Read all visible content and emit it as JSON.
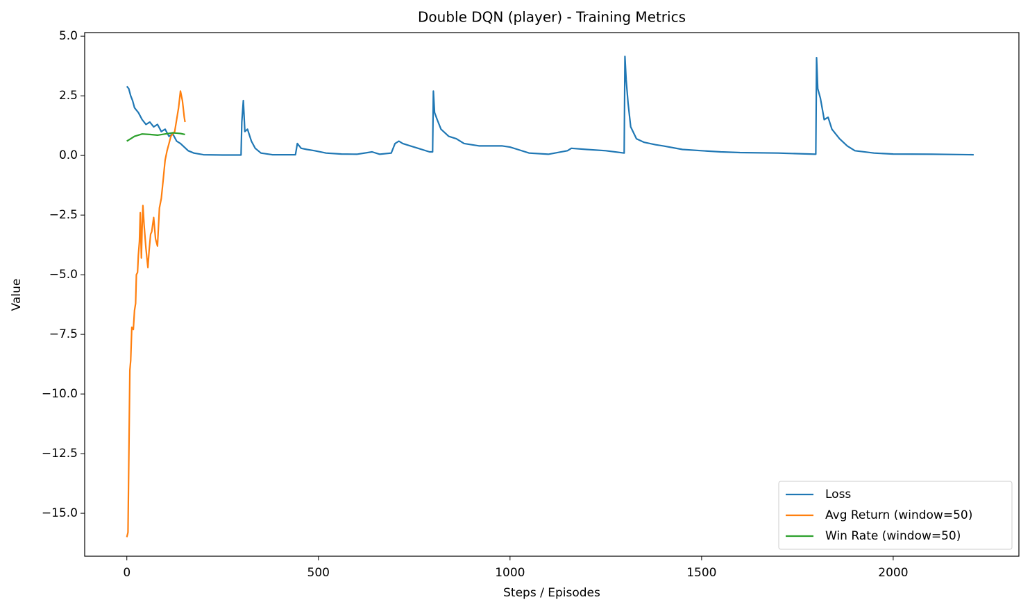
{
  "chart_data": {
    "type": "line",
    "title": "Double DQN (player) - Training Metrics",
    "xlabel": "Steps / Episodes",
    "ylabel": "Value",
    "xlim": [
      -110,
      2328
    ],
    "ylim": [
      -16.8,
      5.15
    ],
    "xticks": [
      0,
      500,
      1000,
      1500,
      2000
    ],
    "yticks": [
      {
        "value": 5,
        "label": "5.0"
      },
      {
        "value": 2.5,
        "label": "2.5"
      },
      {
        "value": 0,
        "label": "0.0"
      },
      {
        "value": -2.5,
        "label": "−2.5"
      },
      {
        "value": -5,
        "label": "−5.0"
      },
      {
        "value": -7.5,
        "label": "−7.5"
      },
      {
        "value": -10,
        "label": "−10.0"
      },
      {
        "value": -12.5,
        "label": "−12.5"
      },
      {
        "value": -15,
        "label": "−15.0"
      }
    ],
    "legend": "lower right",
    "series": [
      {
        "name": "Loss",
        "color": "#1f77b4",
        "x": [
          0,
          5,
          10,
          15,
          20,
          25,
          30,
          40,
          50,
          60,
          70,
          80,
          90,
          100,
          110,
          120,
          130,
          140,
          150,
          160,
          175,
          200,
          250,
          298,
          300,
          304,
          308,
          315,
          325,
          335,
          350,
          380,
          440,
          445,
          455,
          470,
          490,
          520,
          560,
          600,
          640,
          660,
          690,
          700,
          710,
          720,
          740,
          760,
          790,
          798,
          800,
          803,
          810,
          820,
          840,
          860,
          880,
          900,
          920,
          950,
          980,
          1000,
          1020,
          1050,
          1100,
          1150,
          1160,
          1200,
          1250,
          1298,
          1300,
          1303,
          1308,
          1315,
          1330,
          1350,
          1380,
          1400,
          1450,
          1500,
          1550,
          1600,
          1700,
          1798,
          1800,
          1803,
          1810,
          1820,
          1830,
          1840,
          1860,
          1880,
          1900,
          1950,
          2000,
          2100,
          2210
        ],
        "values": [
          2.9,
          2.8,
          2.5,
          2.3,
          2.0,
          1.9,
          1.8,
          1.5,
          1.3,
          1.4,
          1.2,
          1.3,
          1.0,
          1.1,
          0.8,
          0.9,
          0.6,
          0.5,
          0.35,
          0.2,
          0.1,
          0.03,
          0.02,
          0.02,
          1.4,
          2.3,
          1.0,
          1.1,
          0.6,
          0.3,
          0.1,
          0.03,
          0.03,
          0.5,
          0.3,
          0.25,
          0.2,
          0.1,
          0.06,
          0.05,
          0.15,
          0.05,
          0.1,
          0.5,
          0.6,
          0.5,
          0.4,
          0.3,
          0.15,
          0.15,
          2.7,
          1.8,
          1.5,
          1.1,
          0.8,
          0.7,
          0.5,
          0.45,
          0.4,
          0.4,
          0.4,
          0.35,
          0.25,
          0.1,
          0.05,
          0.2,
          0.3,
          0.25,
          0.2,
          0.1,
          4.15,
          3.2,
          2.2,
          1.2,
          0.7,
          0.55,
          0.45,
          0.4,
          0.25,
          0.2,
          0.15,
          0.12,
          0.1,
          0.05,
          4.1,
          2.8,
          2.4,
          1.5,
          1.6,
          1.1,
          0.7,
          0.4,
          0.2,
          0.1,
          0.06,
          0.05,
          0.03
        ]
      },
      {
        "name": "Avg Return (window=50)",
        "color": "#ff7f0e",
        "x": [
          0,
          3,
          5,
          8,
          10,
          13,
          17,
          20,
          23,
          25,
          28,
          30,
          33,
          35,
          38,
          40,
          42,
          45,
          48,
          50,
          55,
          58,
          62,
          65,
          70,
          75,
          80,
          85,
          90,
          95,
          100,
          105,
          110,
          115,
          120,
          125,
          130,
          135,
          140,
          145,
          150,
          152
        ],
        "values": [
          -16,
          -15.8,
          -13,
          -9,
          -8.6,
          -7.2,
          -7.3,
          -6.5,
          -6.2,
          -5,
          -4.9,
          -4.2,
          -3.6,
          -2.4,
          -4.3,
          -3,
          -2.1,
          -2.9,
          -3.5,
          -3.9,
          -4.7,
          -4.0,
          -3.3,
          -3.2,
          -2.6,
          -3.5,
          -3.8,
          -2.2,
          -1.8,
          -1.0,
          -0.2,
          0.2,
          0.5,
          0.8,
          0.9,
          1.0,
          1.5,
          2.0,
          2.7,
          2.3,
          1.6,
          1.4
        ]
      },
      {
        "name": "Win Rate (window=50)",
        "color": "#2ca02c",
        "x": [
          0,
          10,
          20,
          40,
          60,
          80,
          100,
          120,
          140,
          152
        ],
        "values": [
          0.6,
          0.7,
          0.8,
          0.9,
          0.88,
          0.85,
          0.9,
          0.95,
          0.92,
          0.88
        ]
      }
    ]
  }
}
